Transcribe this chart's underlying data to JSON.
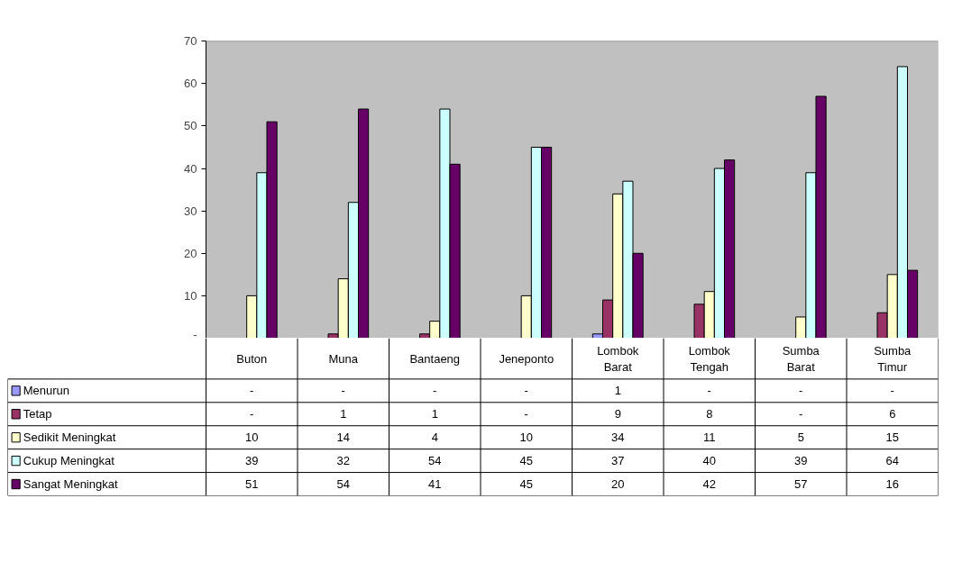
{
  "chart_data": {
    "type": "bar",
    "categories": [
      "Buton",
      "Muna",
      "Bantaeng",
      "Jeneponto",
      "Lombok Barat",
      "Lombok Tengah",
      "Sumba Barat",
      "Sumba Timur"
    ],
    "ylim": [
      0,
      70
    ],
    "legend": "bottom left",
    "yticks": [
      {
        "value": 0,
        "label": "-"
      },
      10,
      20,
      30,
      40,
      50,
      60,
      70
    ],
    "grid": false,
    "series": [
      {
        "name": "Menurun",
        "color": "#9999ff",
        "values": [
          0,
          0,
          0,
          0,
          1,
          0,
          0,
          0
        ],
        "value_labels": [
          "-",
          "-",
          "-",
          "-",
          "1",
          "-",
          "-",
          "-"
        ]
      },
      {
        "name": "Tetap",
        "color": "#993366",
        "values": [
          0,
          1,
          1,
          0,
          9,
          8,
          0,
          6
        ],
        "value_labels": [
          "-",
          "1",
          "1",
          "-",
          "9",
          "8",
          "-",
          "6"
        ]
      },
      {
        "name": "Sedikit Meningkat",
        "color": "#ffffcc",
        "values": [
          10,
          14,
          4,
          10,
          34,
          11,
          5,
          15
        ],
        "value_labels": [
          "10",
          "14",
          "4",
          "10",
          "34",
          "11",
          "5",
          "15"
        ]
      },
      {
        "name": "Cukup Meningkat",
        "color": "#ccffff",
        "values": [
          39,
          32,
          54,
          45,
          37,
          40,
          39,
          64
        ],
        "value_labels": [
          "39",
          "32",
          "54",
          "45",
          "37",
          "40",
          "39",
          "64"
        ]
      },
      {
        "name": "Sangat Meningkat",
        "color": "#660066",
        "values": [
          51,
          54,
          41,
          45,
          20,
          42,
          57,
          16
        ],
        "value_labels": [
          "51",
          "54",
          "41",
          "45",
          "20",
          "42",
          "57",
          "16"
        ]
      }
    ]
  }
}
